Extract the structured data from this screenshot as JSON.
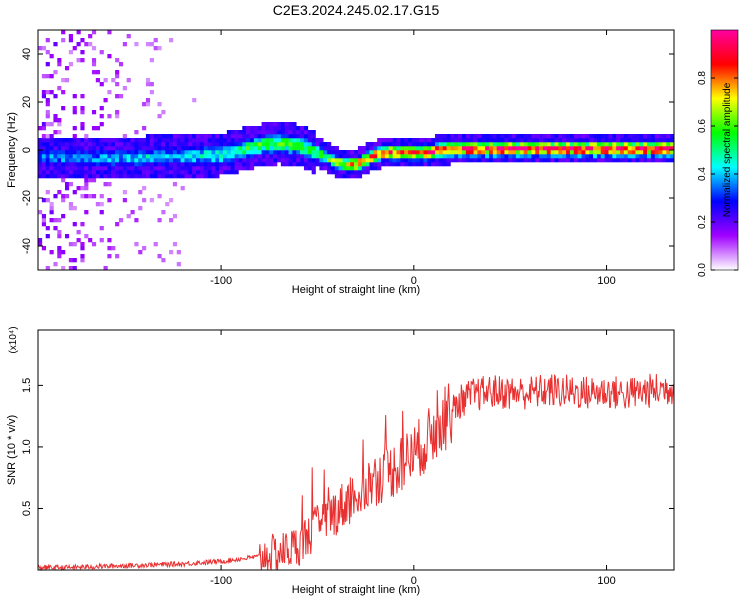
{
  "title": "C2E3.2024.245.02.17.G15",
  "chart_data": [
    {
      "type": "heatmap",
      "title": "C2E3.2024.245.02.17.G15",
      "xlabel": "Height of straight line (km)",
      "ylabel": "Frequency (Hz)",
      "xlim": [
        -195,
        135
      ],
      "ylim": [
        -50,
        50
      ],
      "x_ticks": [
        -100,
        0,
        100
      ],
      "x_tick_labels": [
        "-100",
        "0",
        "100"
      ],
      "y_ticks": [
        -40,
        -20,
        0,
        20,
        40
      ],
      "y_tick_labels": [
        "-40",
        "-20",
        "0",
        "20",
        "40"
      ],
      "colorbar": {
        "label": "Normalized spectral amplitude",
        "range": [
          0,
          1
        ],
        "ticks": [
          0.0,
          0.2,
          0.4,
          0.6,
          0.8
        ],
        "tick_labels": [
          "0.0",
          "0.2",
          "0.4",
          "0.6",
          "0.8"
        ],
        "colormap": [
          "#ffffff",
          "#a000ff",
          "#0000ff",
          "#00ffff",
          "#00ff00",
          "#ffff00",
          "#ff0000",
          "#ff00a0"
        ]
      },
      "ridge": {
        "x": [
          -195,
          -180,
          -160,
          -140,
          -120,
          -100,
          -90,
          -80,
          -70,
          -60,
          -50,
          -45,
          -40,
          -35,
          -30,
          -25,
          -20,
          -15,
          -10,
          -5,
          0,
          5,
          10,
          15,
          20,
          40,
          60,
          80,
          100,
          120,
          135
        ],
        "y": [
          -3,
          -3,
          -3.5,
          -3,
          -2.5,
          -2,
          0,
          2,
          3,
          2,
          -1,
          -3,
          -5,
          -6,
          -6,
          -4,
          -2,
          -1,
          -1,
          -1,
          -1,
          -1,
          -0.5,
          0,
          0.5,
          0.5,
          0.5,
          0.5,
          0.5,
          0.5,
          0.5
        ],
        "amplitude": [
          0.4,
          0.4,
          0.4,
          0.45,
          0.45,
          0.5,
          0.55,
          0.6,
          0.6,
          0.6,
          0.6,
          0.65,
          0.7,
          0.75,
          0.8,
          0.8,
          0.85,
          0.85,
          0.9,
          0.9,
          0.9,
          0.9,
          0.92,
          0.95,
          0.97,
          0.97,
          0.97,
          0.97,
          0.97,
          0.97,
          0.97
        ]
      }
    },
    {
      "type": "line",
      "xlabel": "Height of straight line (km)",
      "ylabel": "SNR (10 * v/v)",
      "y_multiplier": "(x10⁴)",
      "xlim": [
        -195,
        135
      ],
      "ylim": [
        0,
        1.95
      ],
      "x_ticks": [
        -100,
        0,
        100
      ],
      "x_tick_labels": [
        "-100",
        "0",
        "100"
      ],
      "y_ticks": [
        0.5,
        1.0,
        1.5
      ],
      "y_tick_labels": [
        "0.5",
        "1.0",
        "1.5"
      ],
      "line_color": "#e83030",
      "series": [
        {
          "x": [
            -195,
            -180,
            -160,
            -140,
            -120,
            -100,
            -90,
            -80,
            -70,
            -60,
            -55,
            -50,
            -45,
            -40,
            -35,
            -30,
            -25,
            -20,
            -15,
            -10,
            -5,
            0,
            5,
            10,
            15,
            20,
            25,
            30,
            40,
            50,
            60,
            70,
            80,
            90,
            100,
            110,
            120,
            135
          ],
          "y": [
            0.02,
            0.02,
            0.03,
            0.04,
            0.05,
            0.07,
            0.09,
            0.11,
            0.14,
            0.2,
            0.28,
            0.35,
            0.42,
            0.48,
            0.55,
            0.6,
            0.68,
            0.74,
            0.78,
            0.82,
            0.88,
            0.95,
            1.02,
            1.1,
            1.2,
            1.3,
            1.38,
            1.42,
            1.45,
            1.44,
            1.44,
            1.46,
            1.45,
            1.44,
            1.45,
            1.43,
            1.45,
            1.48
          ]
        }
      ]
    }
  ]
}
